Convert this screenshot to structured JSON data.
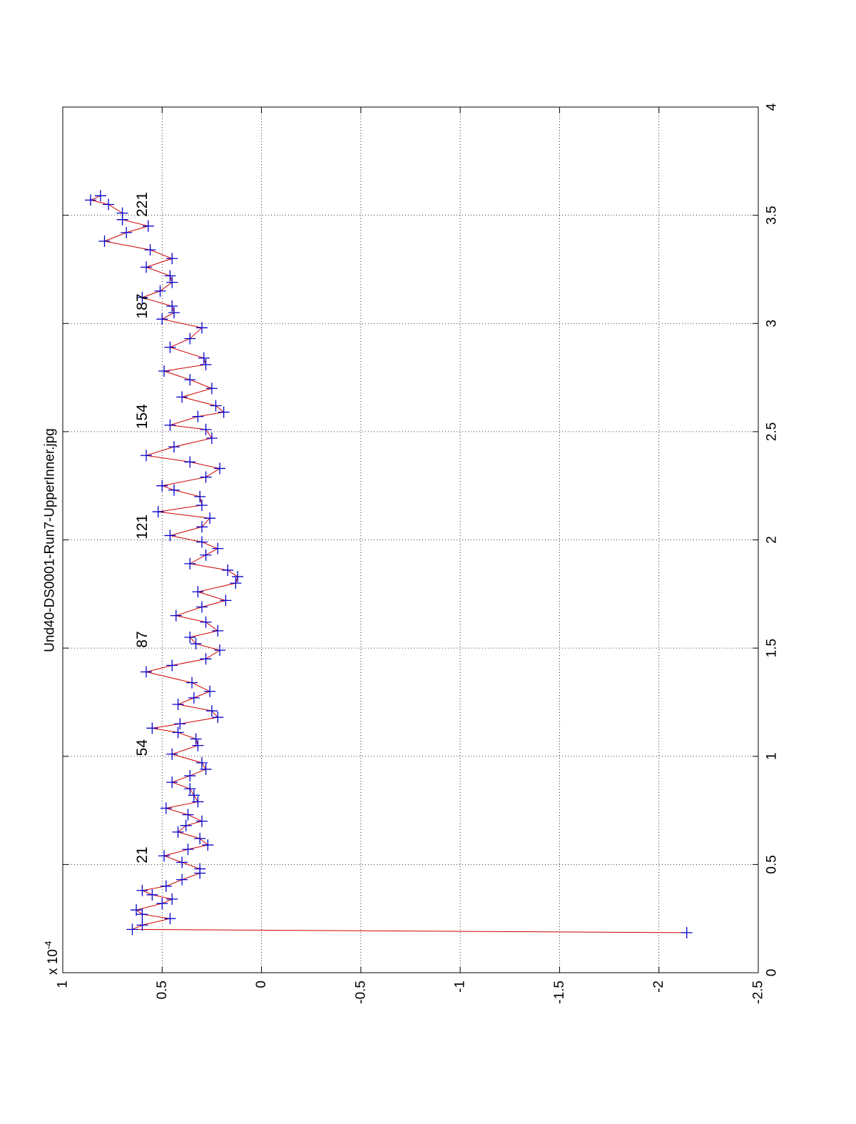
{
  "chart_data": {
    "type": "line",
    "title": "Und40-DS0001-Run7-UpperInner.jpg",
    "y_multiplier": {
      "base": "x 10",
      "exponent": "-4"
    },
    "x": [
      0.185,
      0.2,
      0.22,
      0.25,
      0.27,
      0.29,
      0.32,
      0.34,
      0.36,
      0.38,
      0.4,
      0.43,
      0.46,
      0.48,
      0.51,
      0.54,
      0.57,
      0.59,
      0.62,
      0.65,
      0.68,
      0.7,
      0.73,
      0.76,
      0.79,
      0.82,
      0.85,
      0.88,
      0.91,
      0.94,
      0.97,
      1.01,
      1.05,
      1.08,
      1.11,
      1.13,
      1.15,
      1.18,
      1.21,
      1.24,
      1.27,
      1.3,
      1.34,
      1.39,
      1.42,
      1.45,
      1.49,
      1.52,
      1.55,
      1.58,
      1.62,
      1.65,
      1.69,
      1.72,
      1.76,
      1.8,
      1.83,
      1.86,
      1.89,
      1.93,
      1.96,
      1.99,
      2.02,
      2.06,
      2.1,
      2.13,
      2.16,
      2.2,
      2.23,
      2.25,
      2.29,
      2.33,
      2.36,
      2.39,
      2.43,
      2.47,
      2.51,
      2.53,
      2.57,
      2.59,
      2.62,
      2.66,
      2.7,
      2.74,
      2.78,
      2.81,
      2.84,
      2.89,
      2.93,
      2.98,
      3.02,
      3.05,
      3.08,
      3.12,
      3.15,
      3.19,
      3.22,
      3.26,
      3.3,
      3.34,
      3.38,
      3.42,
      3.45,
      3.48,
      3.51,
      3.55,
      3.57,
      3.59
    ],
    "series": [
      {
        "color": "#cc0000",
        "marker_color": "#0000cc",
        "values": [
          -2.14,
          0.65,
          0.6,
          0.46,
          0.6,
          0.63,
          0.5,
          0.45,
          0.55,
          0.6,
          0.48,
          0.4,
          0.31,
          0.31,
          0.4,
          0.49,
          0.37,
          0.27,
          0.31,
          0.42,
          0.38,
          0.3,
          0.37,
          0.48,
          0.32,
          0.34,
          0.36,
          0.45,
          0.36,
          0.28,
          0.3,
          0.45,
          0.32,
          0.33,
          0.42,
          0.55,
          0.41,
          0.22,
          0.25,
          0.42,
          0.34,
          0.26,
          0.35,
          0.58,
          0.45,
          0.28,
          0.21,
          0.33,
          0.36,
          0.22,
          0.28,
          0.43,
          0.3,
          0.18,
          0.32,
          0.13,
          0.12,
          0.17,
          0.36,
          0.28,
          0.22,
          0.3,
          0.46,
          0.3,
          0.26,
          0.52,
          0.3,
          0.31,
          0.44,
          0.5,
          0.28,
          0.21,
          0.36,
          0.58,
          0.44,
          0.25,
          0.28,
          0.46,
          0.32,
          0.19,
          0.23,
          0.4,
          0.25,
          0.36,
          0.49,
          0.28,
          0.29,
          0.46,
          0.36,
          0.3,
          0.5,
          0.44,
          0.45,
          0.6,
          0.51,
          0.45,
          0.46,
          0.58,
          0.45,
          0.56,
          0.79,
          0.68,
          0.57,
          0.7,
          0.7,
          0.77,
          0.86,
          0.81
        ]
      }
    ],
    "annotations": [
      {
        "text": "21",
        "x": 0.544,
        "y": 0.6
      },
      {
        "text": "54",
        "x": 1.04,
        "y": 0.6
      },
      {
        "text": "87",
        "x": 1.54,
        "y": 0.6
      },
      {
        "text": "121",
        "x": 2.06,
        "y": 0.6
      },
      {
        "text": "154",
        "x": 2.57,
        "y": 0.6
      },
      {
        "text": "187",
        "x": 3.08,
        "y": 0.6
      },
      {
        "text": "221",
        "x": 3.55,
        "y": 0.6
      }
    ],
    "xlim": [
      0,
      4
    ],
    "xticks": [
      0,
      0.5,
      1,
      1.5,
      2,
      2.5,
      3,
      3.5,
      4
    ],
    "ylim": [
      -2.5,
      1
    ],
    "yticks": [
      1,
      0.5,
      0,
      -0.5,
      -1,
      -1.5,
      -2,
      -2.5
    ],
    "grid": true,
    "rotated": true
  }
}
